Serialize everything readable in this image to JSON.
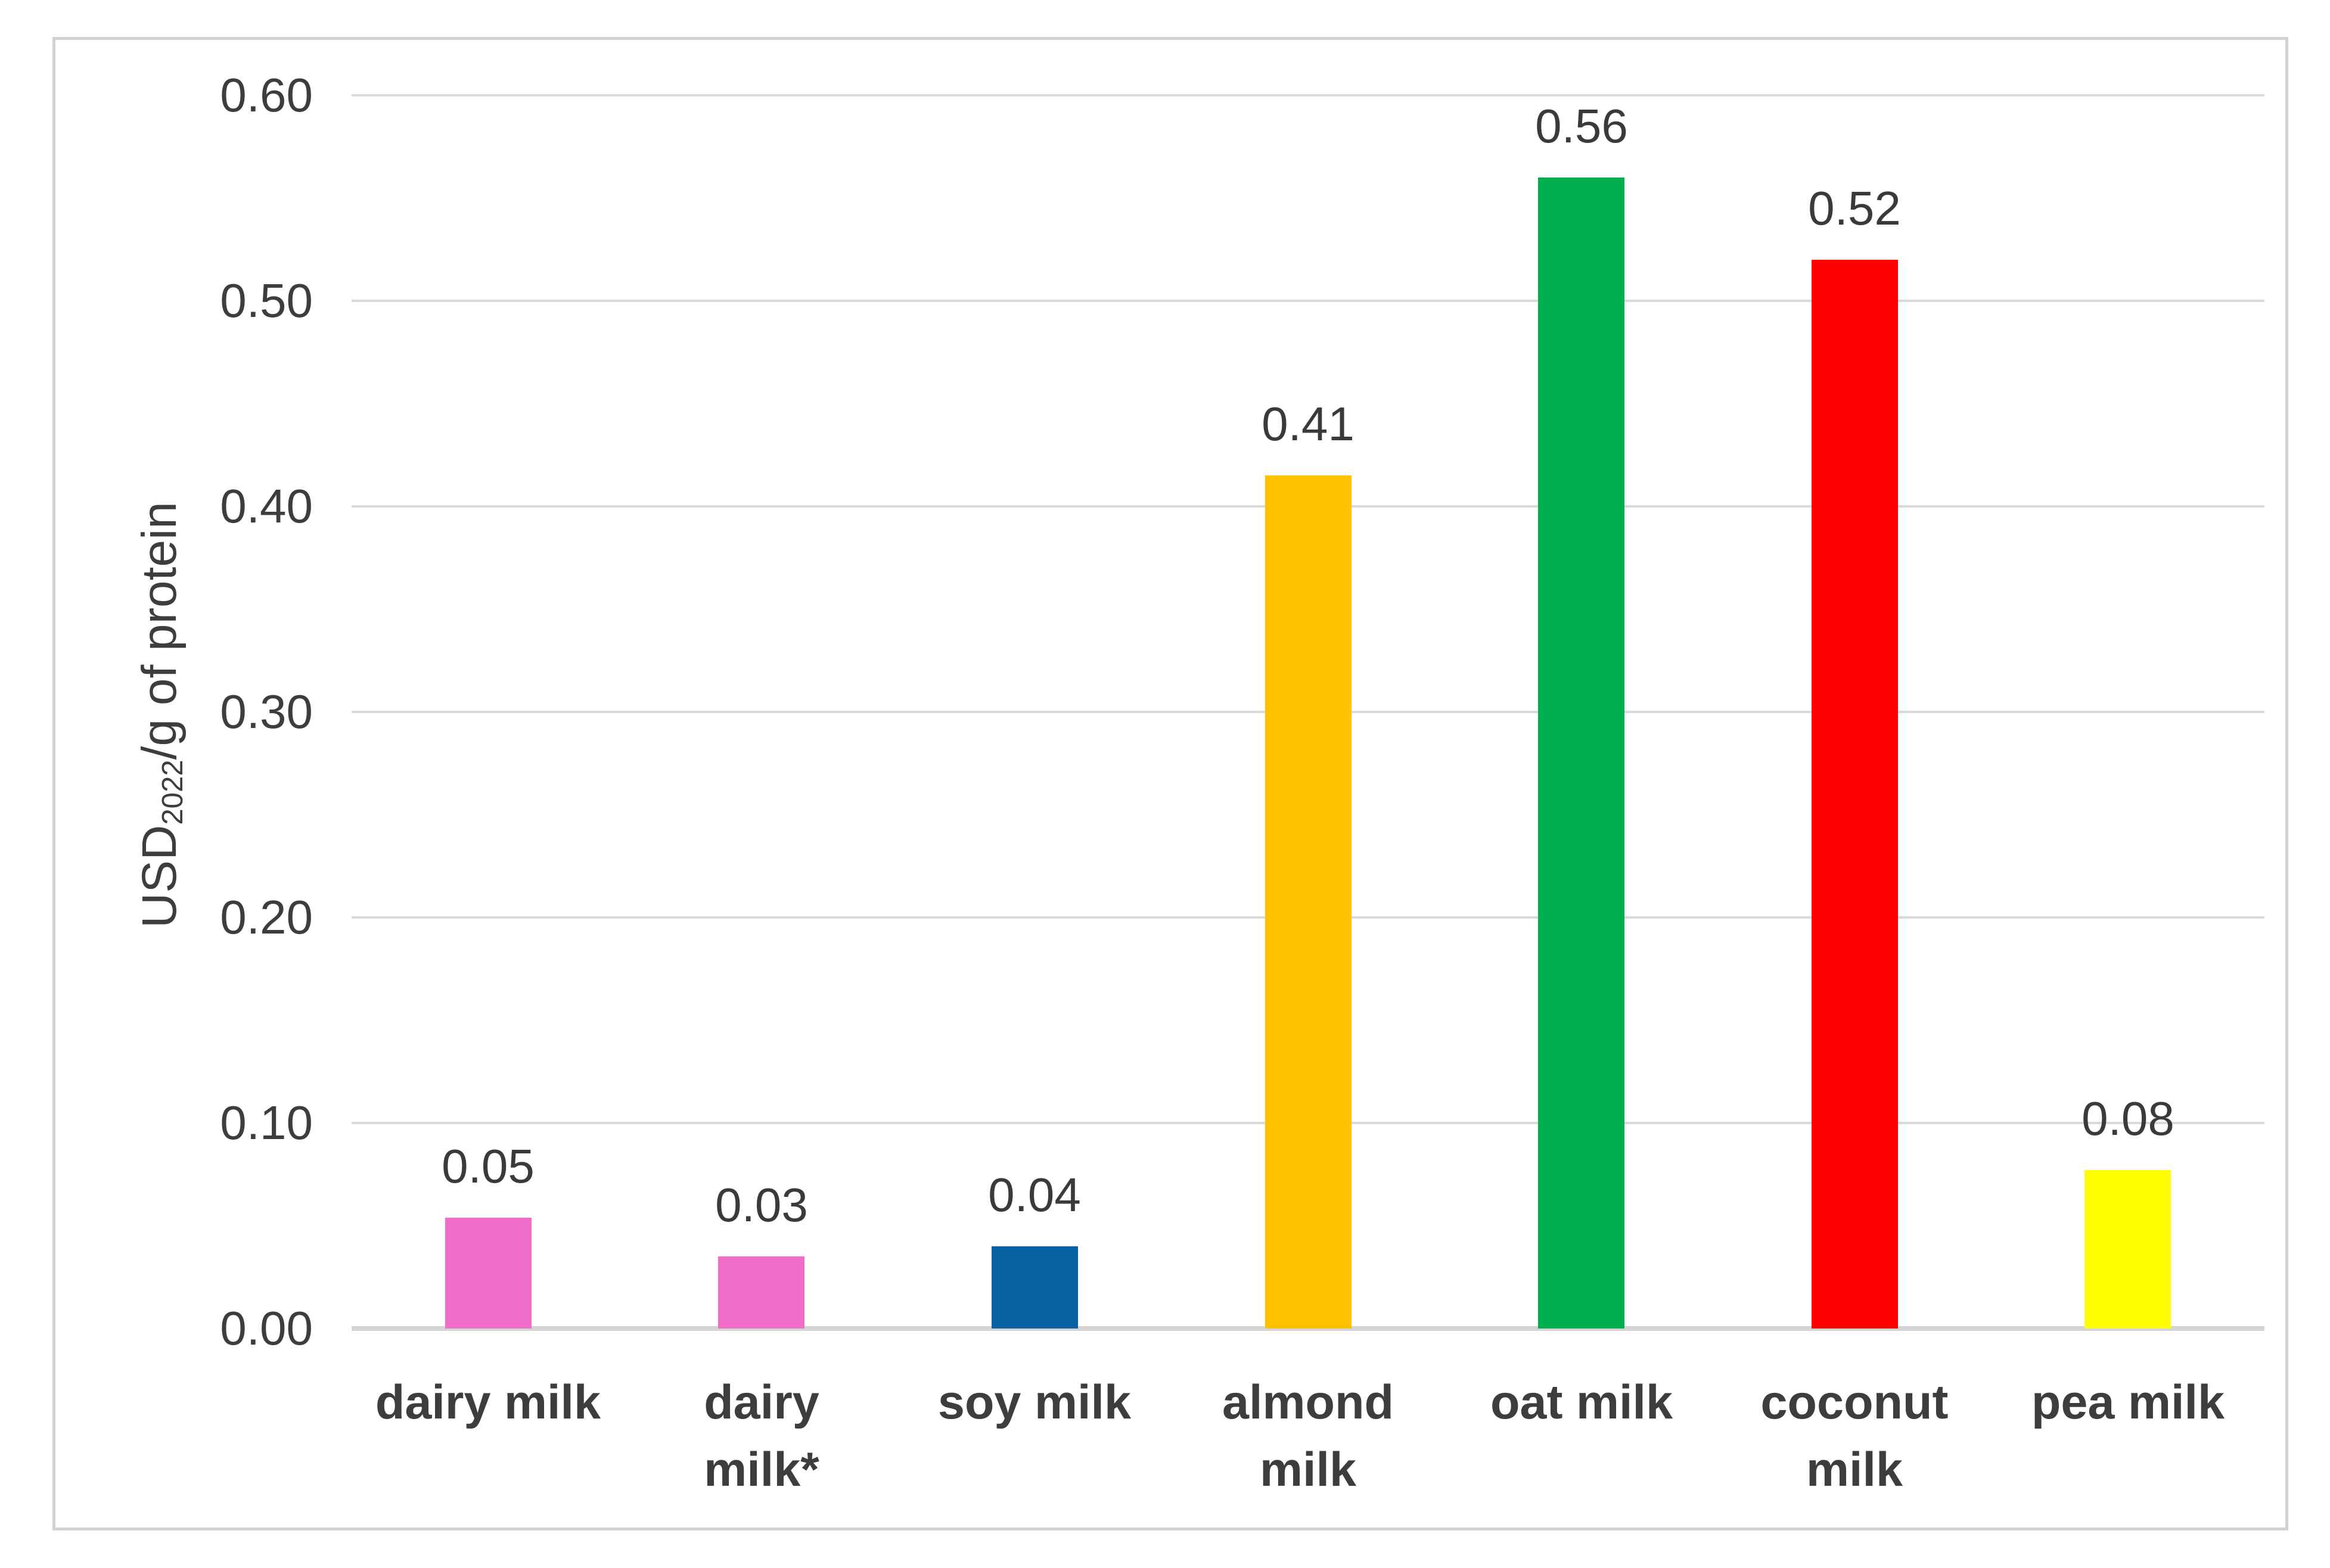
{
  "chart_data": {
    "type": "bar",
    "title": "",
    "xlabel": "",
    "ylabel": "USD2022/g of protein",
    "ylabel_parts": {
      "prefix": "USD",
      "subscript": "2022",
      "suffix": "/g of protein"
    },
    "ylim": [
      0.0,
      0.6
    ],
    "ytick_interval": 0.1,
    "yticks": [
      "0.00",
      "0.10",
      "0.20",
      "0.30",
      "0.40",
      "0.50",
      "0.60"
    ],
    "grid": "horizontal gridlines on, light gray",
    "legend": "none",
    "categories": [
      "dairy milk",
      "dairy milk*",
      "soy milk",
      "almond milk",
      "oat milk",
      "coconut milk",
      "pea milk"
    ],
    "category_label_lines": [
      [
        "dairy milk"
      ],
      [
        "dairy",
        "milk*"
      ],
      [
        "soy milk"
      ],
      [
        "almond",
        "milk"
      ],
      [
        "oat milk"
      ],
      [
        "coconut",
        "milk"
      ],
      [
        "pea milk"
      ]
    ],
    "values": [
      0.05,
      0.03,
      0.04,
      0.41,
      0.56,
      0.52,
      0.08
    ],
    "data_labels": [
      "0.05",
      "0.03",
      "0.04",
      "0.41",
      "0.56",
      "0.52",
      "0.08"
    ],
    "drawn_bar_values": [
      0.054,
      0.035,
      0.04,
      0.415,
      0.56,
      0.52,
      0.077
    ],
    "bar_colors": [
      "#EF6FC8",
      "#EF6FC8",
      "#0A61A4",
      "#FFC000",
      "#00B050",
      "#FF0000",
      "#FFFF00"
    ],
    "style_colors": {
      "gridline": "#D9D9D9",
      "axis_baseline": "#D4D4D4",
      "frame_border": "#D2D2D2",
      "text": "#3D3D3D",
      "background": "#FFFFFF"
    }
  }
}
